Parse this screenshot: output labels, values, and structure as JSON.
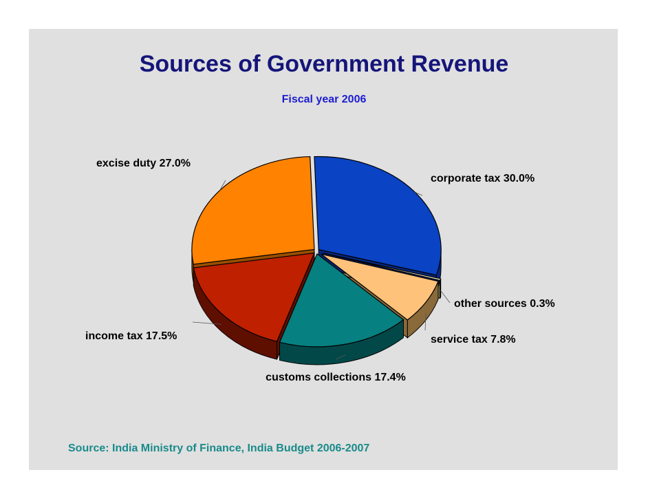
{
  "chart_data": {
    "type": "pie",
    "title": "Sources of Government Revenue",
    "subtitle": "Fiscal year 2006",
    "slices": [
      {
        "name": "corporate tax",
        "value": 30.0,
        "label": "corporate tax  30.0%",
        "color": "#0a43c4",
        "side_color": "#05267a"
      },
      {
        "name": "other sources",
        "value": 0.3,
        "label": "other sources  0.3%",
        "color": "#f2f0c8",
        "side_color": "#8c8a5c"
      },
      {
        "name": "service tax",
        "value": 7.8,
        "label": "service tax  7.8%",
        "color": "#ffc27a",
        "side_color": "#8a6a3a"
      },
      {
        "name": "customs collections",
        "value": 17.4,
        "label": "customs collections  17.4%",
        "color": "#068080",
        "side_color": "#034848"
      },
      {
        "name": "income tax",
        "value": 17.5,
        "label": "income tax  17.5%",
        "color": "#bf2000",
        "side_color": "#5e0f00"
      },
      {
        "name": "excise duty",
        "value": 27.0,
        "label": "excise duty  27.0%",
        "color": "#ff8200",
        "side_color": "#9a4e00"
      }
    ],
    "source_note": "Source: India Ministry of Finance, India Budget 2006-2007"
  }
}
